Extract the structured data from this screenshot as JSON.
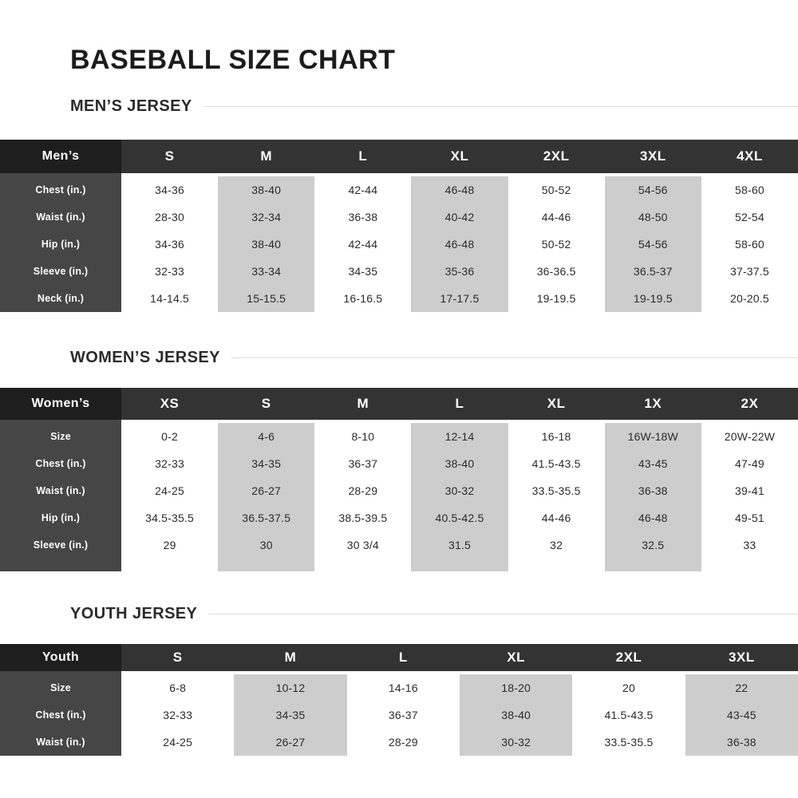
{
  "page": {
    "title": "BASEBALL SIZE CHART"
  },
  "colors": {
    "header_corner": "#1e1e1e",
    "header_row": "#333333",
    "label_column": "#464646",
    "alt_column": "#cdcdcd",
    "body_text": "#2b2b2b",
    "heading_rule": "#dcdcdc"
  },
  "sections": [
    {
      "heading": "MEN’S JERSEY",
      "corner": "Men’s",
      "row_labels": [
        "Chest (in.)",
        "Waist (in.)",
        "Hip (in.)",
        "Sleeve (in.)",
        "Neck (in.)"
      ],
      "columns": [
        {
          "size": "S",
          "values": [
            "34-36",
            "28-30",
            "34-36",
            "32-33",
            "14-14.5"
          ]
        },
        {
          "size": "M",
          "values": [
            "38-40",
            "32-34",
            "38-40",
            "33-34",
            "15-15.5"
          ]
        },
        {
          "size": "L",
          "values": [
            "42-44",
            "36-38",
            "42-44",
            "34-35",
            "16-16.5"
          ]
        },
        {
          "size": "XL",
          "values": [
            "46-48",
            "40-42",
            "46-48",
            "35-36",
            "17-17.5"
          ]
        },
        {
          "size": "2XL",
          "values": [
            "50-52",
            "44-46",
            "50-52",
            "36-36.5",
            "19-19.5"
          ]
        },
        {
          "size": "3XL",
          "values": [
            "54-56",
            "48-50",
            "54-56",
            "36.5-37",
            "19-19.5"
          ]
        },
        {
          "size": "4XL",
          "values": [
            "58-60",
            "52-54",
            "58-60",
            "37-37.5",
            "20-20.5"
          ]
        }
      ]
    },
    {
      "heading": "WOMEN’S JERSEY",
      "corner": "Women’s",
      "row_labels": [
        "Size",
        "Chest (in.)",
        "Waist (in.)",
        "Hip (in.)",
        "Sleeve (in.)"
      ],
      "columns": [
        {
          "size": "XS",
          "values": [
            "0-2",
            "32-33",
            "24-25",
            "34.5-35.5",
            "29"
          ]
        },
        {
          "size": "S",
          "values": [
            "4-6",
            "34-35",
            "26-27",
            "36.5-37.5",
            "30"
          ]
        },
        {
          "size": "M",
          "values": [
            "8-10",
            "36-37",
            "28-29",
            "38.5-39.5",
            "30 3/4"
          ]
        },
        {
          "size": "L",
          "values": [
            "12-14",
            "38-40",
            "30-32",
            "40.5-42.5",
            "31.5"
          ]
        },
        {
          "size": "XL",
          "values": [
            "16-18",
            "41.5-43.5",
            "33.5-35.5",
            "44-46",
            "32"
          ]
        },
        {
          "size": "1X",
          "values": [
            "16W-18W",
            "43-45",
            "36-38",
            "46-48",
            "32.5"
          ]
        },
        {
          "size": "2X",
          "values": [
            "20W-22W",
            "47-49",
            "39-41",
            "49-51",
            "33"
          ]
        }
      ]
    },
    {
      "heading": "YOUTH JERSEY",
      "corner": "Youth",
      "row_labels": [
        "Size",
        "Chest (in.)",
        "Waist (in.)"
      ],
      "columns": [
        {
          "size": "S",
          "values": [
            "6-8",
            "32-33",
            "24-25"
          ]
        },
        {
          "size": "M",
          "values": [
            "10-12",
            "34-35",
            "26-27"
          ]
        },
        {
          "size": "L",
          "values": [
            "14-16",
            "36-37",
            "28-29"
          ]
        },
        {
          "size": "XL",
          "values": [
            "18-20",
            "38-40",
            "30-32"
          ]
        },
        {
          "size": "2XL",
          "values": [
            "20",
            "41.5-43.5",
            "33.5-35.5"
          ]
        },
        {
          "size": "3XL",
          "values": [
            "22",
            "43-45",
            "36-38"
          ]
        }
      ]
    }
  ]
}
